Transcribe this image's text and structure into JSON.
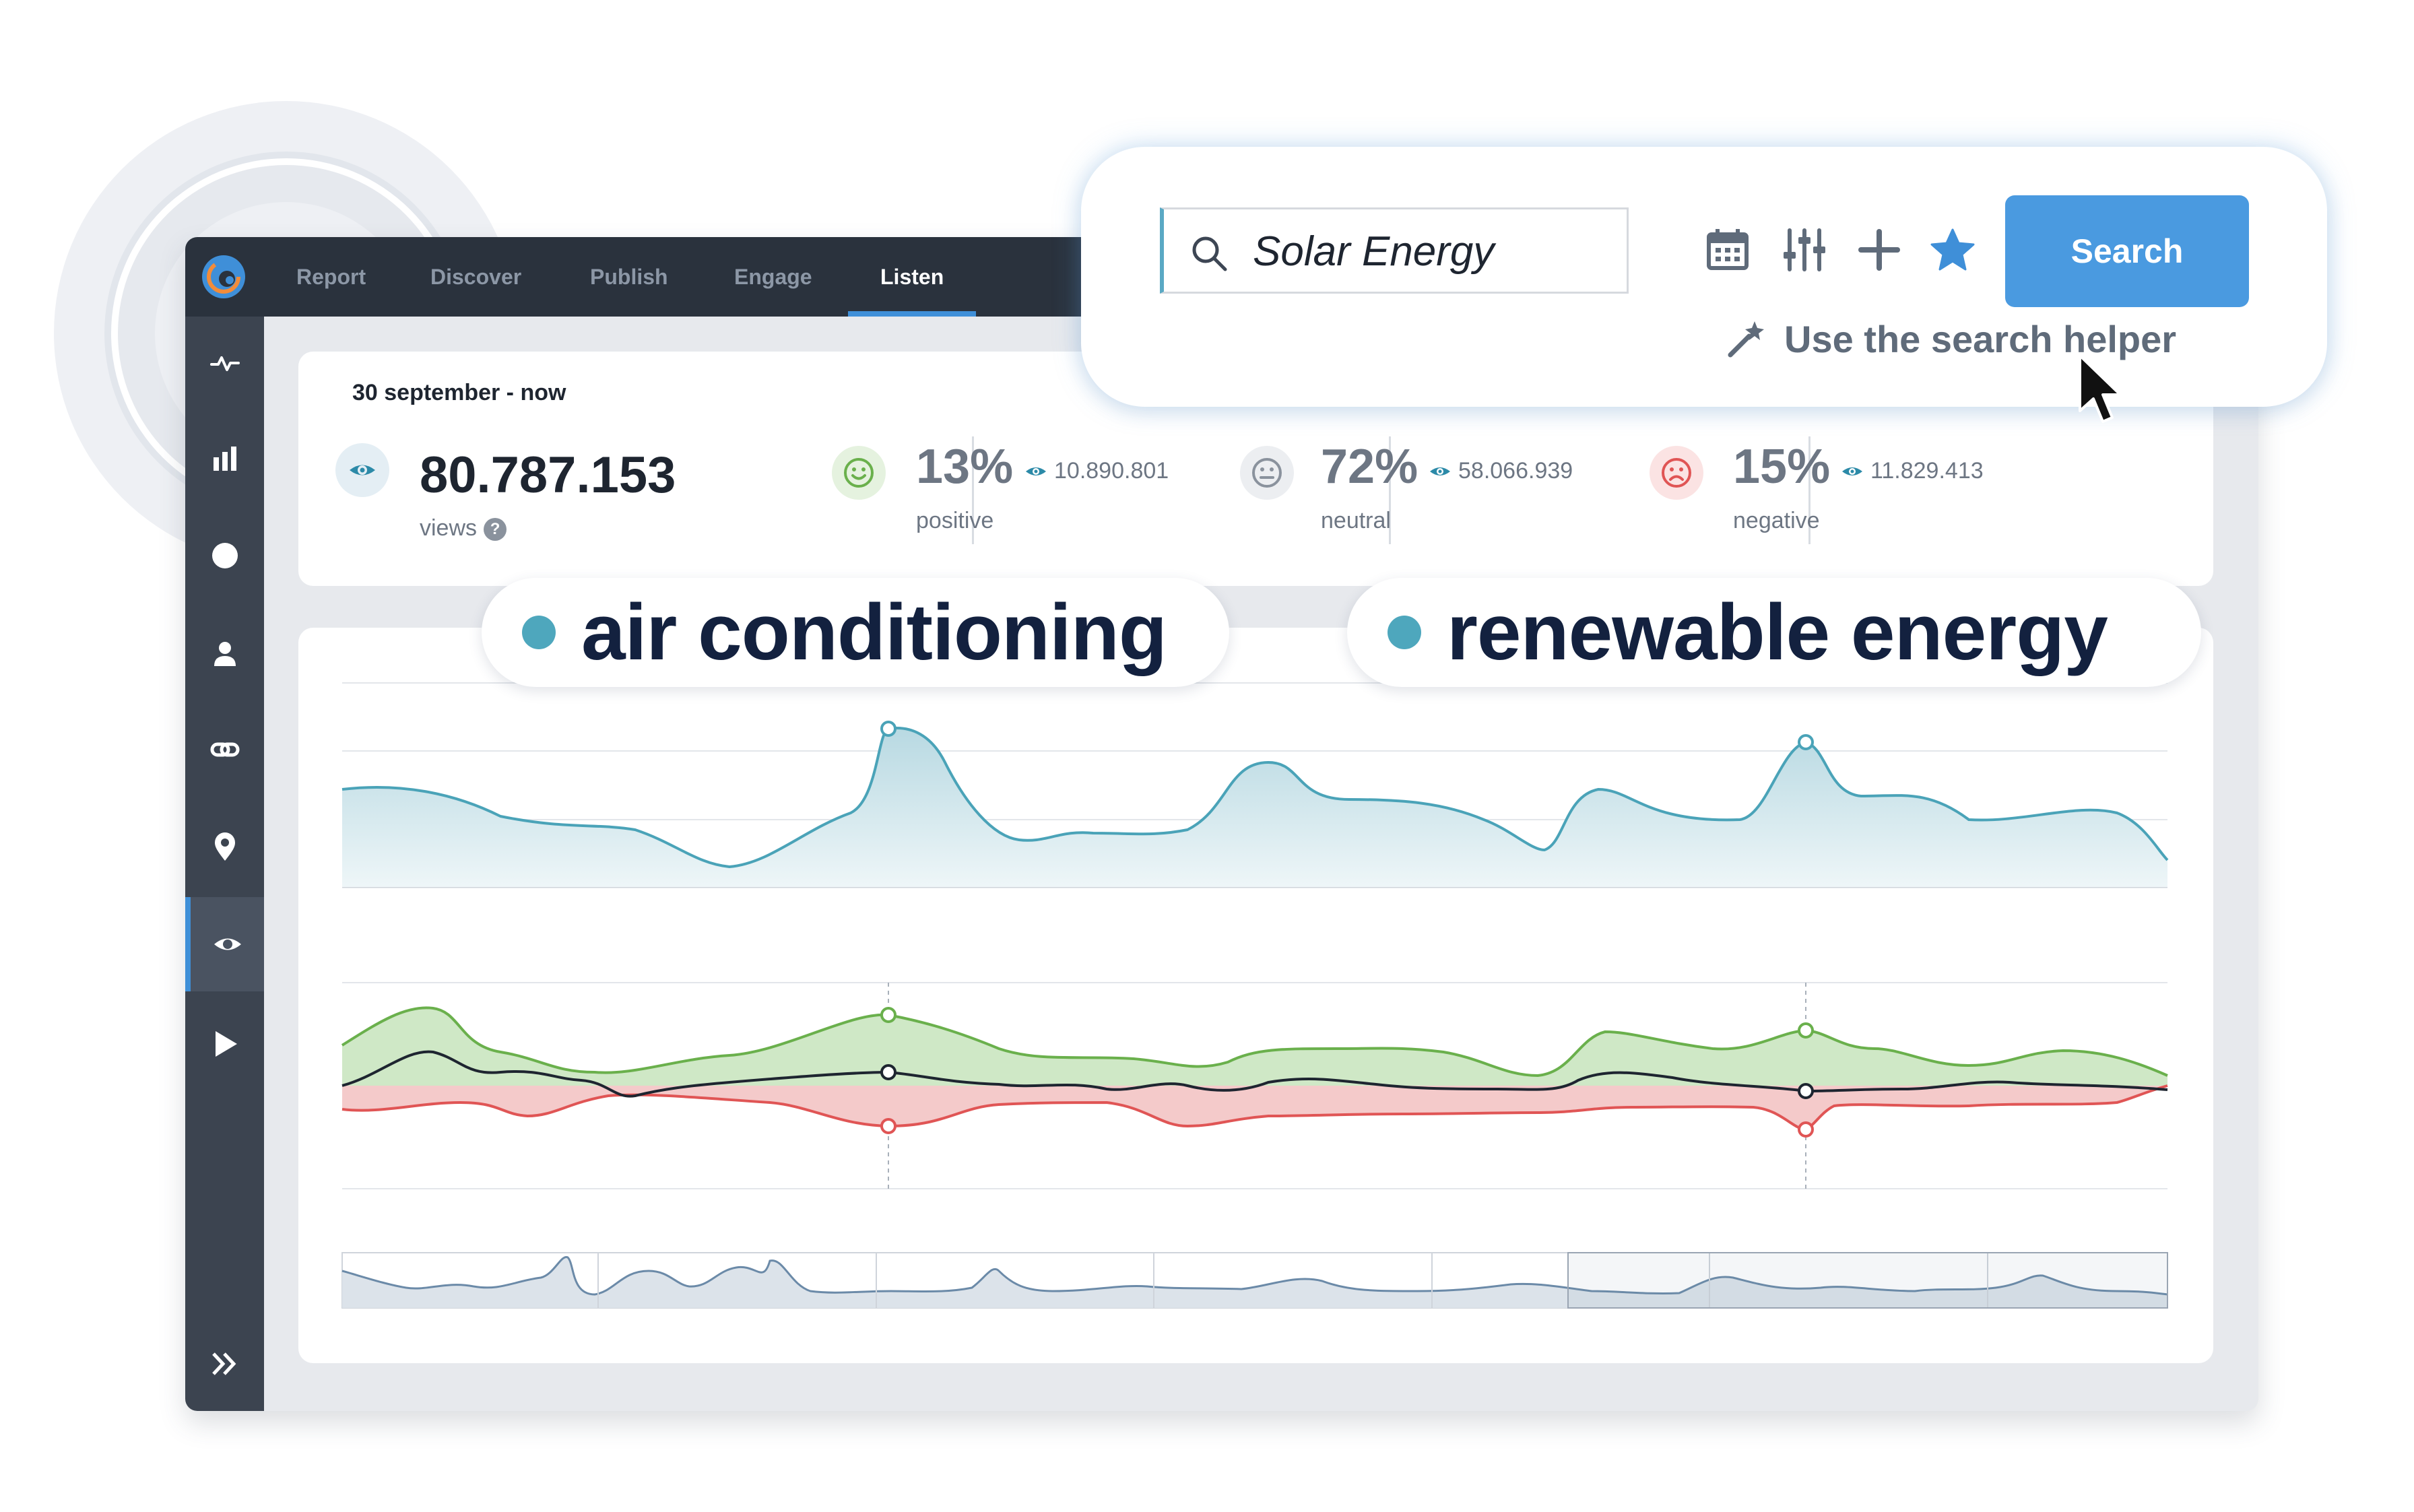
{
  "nav": {
    "items": [
      {
        "label": "Report",
        "active": false
      },
      {
        "label": "Discover",
        "active": false
      },
      {
        "label": "Publish",
        "active": false
      },
      {
        "label": "Engage",
        "active": false
      },
      {
        "label": "Listen",
        "active": true
      }
    ]
  },
  "sidebar": {
    "icons": [
      "activity-icon",
      "bar-chart-icon",
      "circle-icon",
      "user-icon",
      "link-icon",
      "location-pin-icon",
      "eye-icon",
      "play-icon"
    ],
    "active": "eye-icon",
    "expand_icon": "double-chevron-right-icon"
  },
  "stats": {
    "date_range": "30 september - now",
    "views": {
      "value": "80.787.153",
      "label": "views"
    },
    "positive": {
      "percent": "13%",
      "count": "10.890.801",
      "label": "positive"
    },
    "neutral": {
      "percent": "72%",
      "count": "58.066.939",
      "label": "neutral"
    },
    "negative": {
      "percent": "15%",
      "count": "11.829.413",
      "label": "negative"
    }
  },
  "search": {
    "query": "Solar Energy",
    "button_label": "Search",
    "helper_text": "Use the search helper",
    "tool_icons": [
      "calendar-icon",
      "sliders-icon",
      "plus-icon",
      "star-icon"
    ]
  },
  "topics": [
    "air conditioning",
    "renewable energy"
  ],
  "colors": {
    "nav_bg": "#2a323d",
    "sidebar_bg": "#3c4450",
    "accent_blue": "#4a9ae0",
    "teal": "#4ea7bd",
    "positive_green": "#6ab04c",
    "negative_red": "#e05555",
    "topic_text": "#13213f"
  }
}
